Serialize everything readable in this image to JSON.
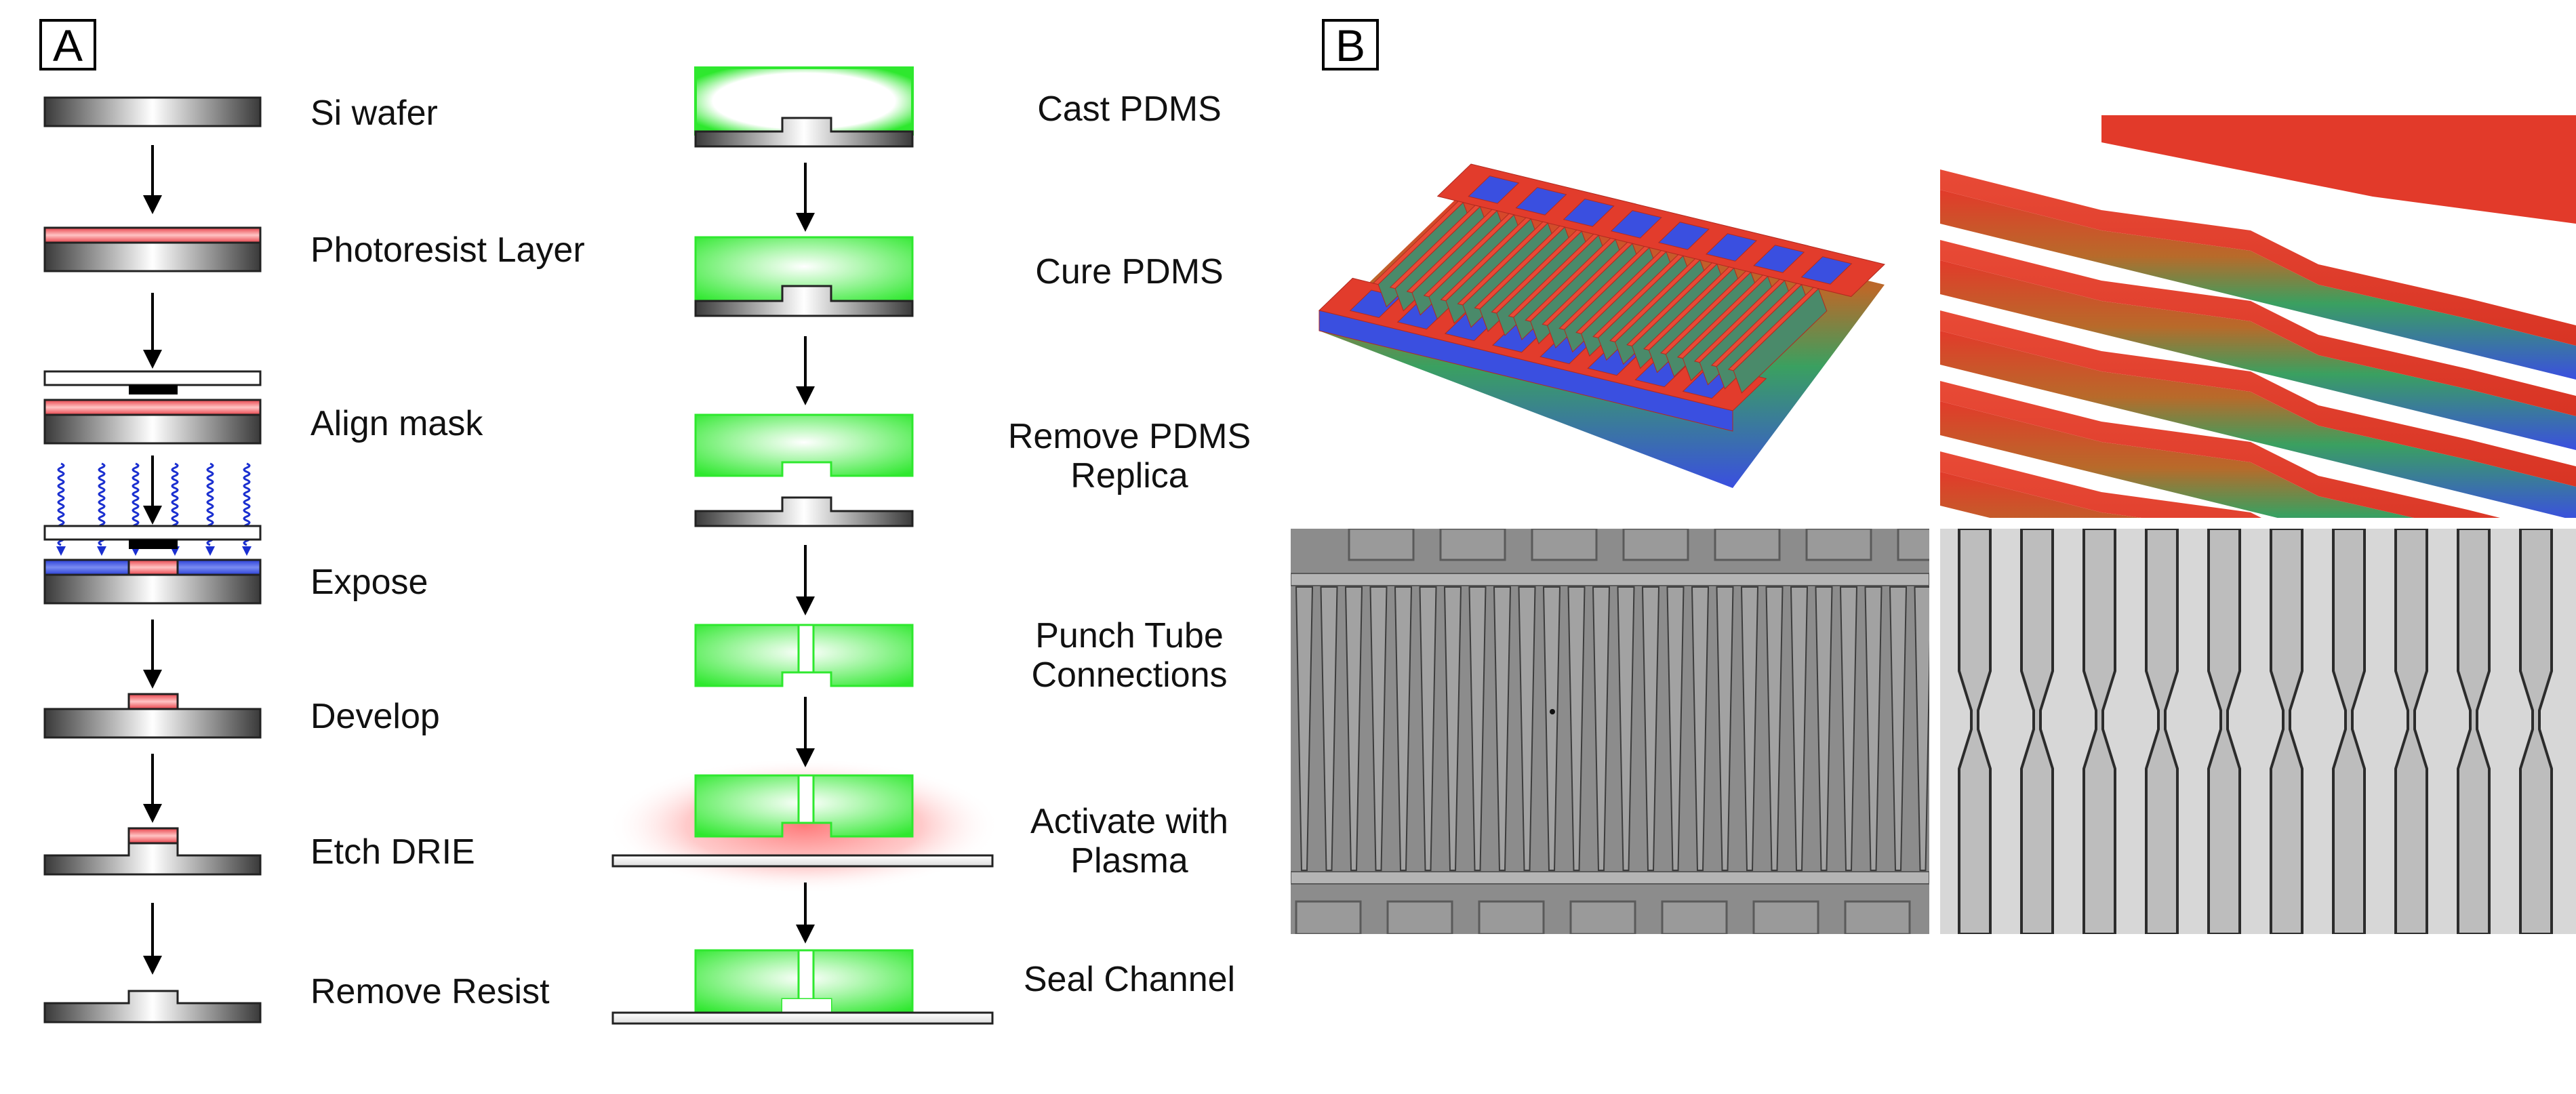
{
  "panels": {
    "a": {
      "letter": "A"
    },
    "b": {
      "letter": "B"
    }
  },
  "left_steps": [
    {
      "label": "Si wafer"
    },
    {
      "label": "Photoresist Layer"
    },
    {
      "label": "Align mask"
    },
    {
      "label": "Expose"
    },
    {
      "label": "Develop"
    },
    {
      "label": "Etch DRIE"
    },
    {
      "label": "Remove Resist"
    }
  ],
  "right_steps": [
    {
      "lines": [
        "Cast PDMS"
      ]
    },
    {
      "lines": [
        "Cure PDMS"
      ]
    },
    {
      "lines": [
        "Remove PDMS",
        "Replica"
      ]
    },
    {
      "lines": [
        "Punch Tube",
        "Connections"
      ]
    },
    {
      "lines": [
        "Activate with",
        "Plasma"
      ]
    },
    {
      "lines": [
        "Seal Channel"
      ]
    }
  ],
  "colors": {
    "silicon_dark": "#3a3a3a",
    "silicon_light": "#ffffff",
    "photoresist": "#e8424a",
    "exposed_resist": "#2a3fd6",
    "pdms": "#2ee82e",
    "plasma": "#ff5a5a",
    "uv": "#1a2fd0",
    "height_high": "#e23a2a",
    "height_low": "#3a4fe0"
  },
  "icons": {
    "arrow": "down-arrow-icon",
    "uv": "uv-light-wave-icon"
  }
}
